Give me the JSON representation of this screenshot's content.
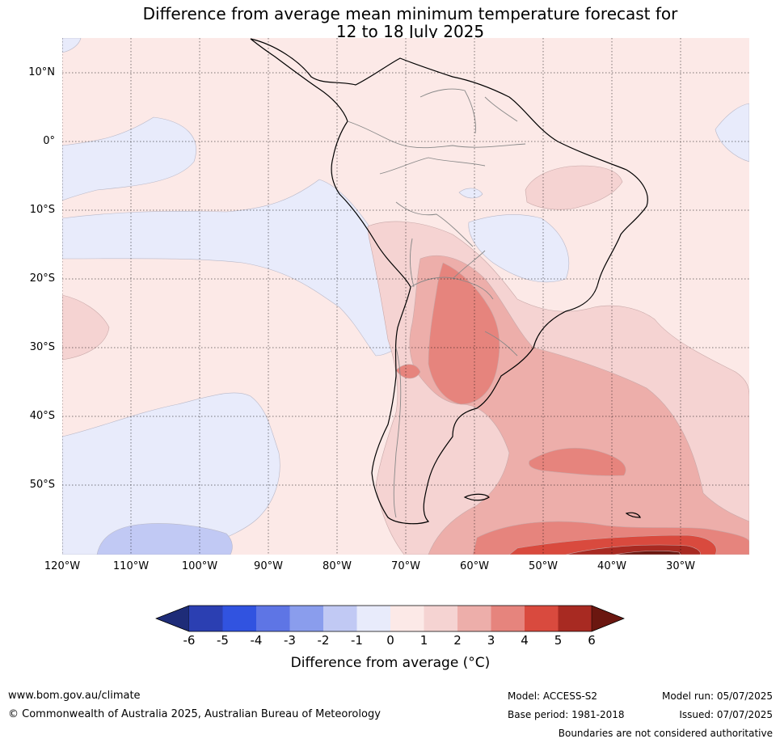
{
  "title": {
    "line1": "Difference from average mean minimum temperature forecast for",
    "line2": "12 to 18 July 2025"
  },
  "map": {
    "lat_labels": [
      "10°N",
      "0°",
      "10°S",
      "20°S",
      "30°S",
      "40°S",
      "50°S"
    ],
    "lon_labels": [
      "120°W",
      "110°W",
      "100°W",
      "90°W",
      "80°W",
      "70°W",
      "60°W",
      "50°W",
      "40°W",
      "30°W"
    ],
    "lat_values": [
      10,
      0,
      -10,
      -20,
      -30,
      -40,
      -50
    ],
    "lon_values": [
      -120,
      -110,
      -100,
      -90,
      -80,
      -70,
      -60,
      -50,
      -40,
      -30
    ],
    "extent": {
      "lon_min": -120,
      "lon_max": -20,
      "lat_min": -60,
      "lat_max": 15
    },
    "ocean_base_color": "#fce9e7",
    "land_border_color": "#000000",
    "country_border_color": "#888888"
  },
  "colorbar": {
    "label": "Difference from average (°C)",
    "ticks": [
      "-6",
      "-5",
      "-4",
      "-3",
      "-2",
      "-1",
      "0",
      "1",
      "2",
      "3",
      "4",
      "5",
      "6"
    ],
    "colors": [
      "#1e2c78",
      "#2b3fb2",
      "#3153e0",
      "#5e75e5",
      "#8a9ded",
      "#c1c9f4",
      "#e8ebfb",
      "#fce9e7",
      "#f5d3d2",
      "#edaeaa",
      "#e6847d",
      "#d94a3e",
      "#a82a22",
      "#6b1710"
    ]
  },
  "footer": {
    "website": "www.bom.gov.au/climate",
    "copyright": "© Commonwealth of Australia 2025, Australian Bureau of Meteorology",
    "model": "Model: ACCESS-S2",
    "base_period": "Base period: 1981-2018",
    "model_run": "Model run: 05/07/2025",
    "issued": "Issued: 07/07/2025",
    "disclaimer": "Boundaries are not considered authoritative"
  }
}
